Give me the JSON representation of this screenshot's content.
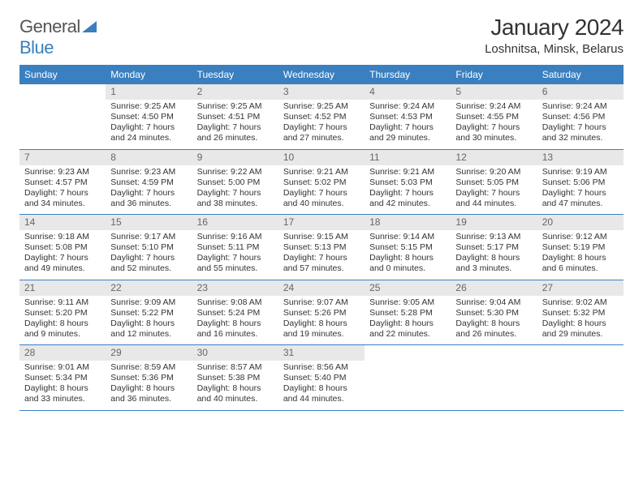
{
  "logo": {
    "gray": "General",
    "blue": "Blue"
  },
  "title": "January 2024",
  "location": "Loshnitsa, Minsk, Belarus",
  "colors": {
    "header_bg": "#3a7fbf",
    "header_fg": "#ffffff",
    "daynum_bg": "#e8e8e8",
    "daynum_fg": "#666666",
    "row_divider": "#3a7fbf",
    "text": "#333333",
    "page_bg": "#ffffff"
  },
  "weekdays": [
    "Sunday",
    "Monday",
    "Tuesday",
    "Wednesday",
    "Thursday",
    "Friday",
    "Saturday"
  ],
  "weeks": [
    [
      {
        "day": "",
        "sunrise": "",
        "sunset": "",
        "daylight": ""
      },
      {
        "day": "1",
        "sunrise": "Sunrise: 9:25 AM",
        "sunset": "Sunset: 4:50 PM",
        "daylight": "Daylight: 7 hours and 24 minutes."
      },
      {
        "day": "2",
        "sunrise": "Sunrise: 9:25 AM",
        "sunset": "Sunset: 4:51 PM",
        "daylight": "Daylight: 7 hours and 26 minutes."
      },
      {
        "day": "3",
        "sunrise": "Sunrise: 9:25 AM",
        "sunset": "Sunset: 4:52 PM",
        "daylight": "Daylight: 7 hours and 27 minutes."
      },
      {
        "day": "4",
        "sunrise": "Sunrise: 9:24 AM",
        "sunset": "Sunset: 4:53 PM",
        "daylight": "Daylight: 7 hours and 29 minutes."
      },
      {
        "day": "5",
        "sunrise": "Sunrise: 9:24 AM",
        "sunset": "Sunset: 4:55 PM",
        "daylight": "Daylight: 7 hours and 30 minutes."
      },
      {
        "day": "6",
        "sunrise": "Sunrise: 9:24 AM",
        "sunset": "Sunset: 4:56 PM",
        "daylight": "Daylight: 7 hours and 32 minutes."
      }
    ],
    [
      {
        "day": "7",
        "sunrise": "Sunrise: 9:23 AM",
        "sunset": "Sunset: 4:57 PM",
        "daylight": "Daylight: 7 hours and 34 minutes."
      },
      {
        "day": "8",
        "sunrise": "Sunrise: 9:23 AM",
        "sunset": "Sunset: 4:59 PM",
        "daylight": "Daylight: 7 hours and 36 minutes."
      },
      {
        "day": "9",
        "sunrise": "Sunrise: 9:22 AM",
        "sunset": "Sunset: 5:00 PM",
        "daylight": "Daylight: 7 hours and 38 minutes."
      },
      {
        "day": "10",
        "sunrise": "Sunrise: 9:21 AM",
        "sunset": "Sunset: 5:02 PM",
        "daylight": "Daylight: 7 hours and 40 minutes."
      },
      {
        "day": "11",
        "sunrise": "Sunrise: 9:21 AM",
        "sunset": "Sunset: 5:03 PM",
        "daylight": "Daylight: 7 hours and 42 minutes."
      },
      {
        "day": "12",
        "sunrise": "Sunrise: 9:20 AM",
        "sunset": "Sunset: 5:05 PM",
        "daylight": "Daylight: 7 hours and 44 minutes."
      },
      {
        "day": "13",
        "sunrise": "Sunrise: 9:19 AM",
        "sunset": "Sunset: 5:06 PM",
        "daylight": "Daylight: 7 hours and 47 minutes."
      }
    ],
    [
      {
        "day": "14",
        "sunrise": "Sunrise: 9:18 AM",
        "sunset": "Sunset: 5:08 PM",
        "daylight": "Daylight: 7 hours and 49 minutes."
      },
      {
        "day": "15",
        "sunrise": "Sunrise: 9:17 AM",
        "sunset": "Sunset: 5:10 PM",
        "daylight": "Daylight: 7 hours and 52 minutes."
      },
      {
        "day": "16",
        "sunrise": "Sunrise: 9:16 AM",
        "sunset": "Sunset: 5:11 PM",
        "daylight": "Daylight: 7 hours and 55 minutes."
      },
      {
        "day": "17",
        "sunrise": "Sunrise: 9:15 AM",
        "sunset": "Sunset: 5:13 PM",
        "daylight": "Daylight: 7 hours and 57 minutes."
      },
      {
        "day": "18",
        "sunrise": "Sunrise: 9:14 AM",
        "sunset": "Sunset: 5:15 PM",
        "daylight": "Daylight: 8 hours and 0 minutes."
      },
      {
        "day": "19",
        "sunrise": "Sunrise: 9:13 AM",
        "sunset": "Sunset: 5:17 PM",
        "daylight": "Daylight: 8 hours and 3 minutes."
      },
      {
        "day": "20",
        "sunrise": "Sunrise: 9:12 AM",
        "sunset": "Sunset: 5:19 PM",
        "daylight": "Daylight: 8 hours and 6 minutes."
      }
    ],
    [
      {
        "day": "21",
        "sunrise": "Sunrise: 9:11 AM",
        "sunset": "Sunset: 5:20 PM",
        "daylight": "Daylight: 8 hours and 9 minutes."
      },
      {
        "day": "22",
        "sunrise": "Sunrise: 9:09 AM",
        "sunset": "Sunset: 5:22 PM",
        "daylight": "Daylight: 8 hours and 12 minutes."
      },
      {
        "day": "23",
        "sunrise": "Sunrise: 9:08 AM",
        "sunset": "Sunset: 5:24 PM",
        "daylight": "Daylight: 8 hours and 16 minutes."
      },
      {
        "day": "24",
        "sunrise": "Sunrise: 9:07 AM",
        "sunset": "Sunset: 5:26 PM",
        "daylight": "Daylight: 8 hours and 19 minutes."
      },
      {
        "day": "25",
        "sunrise": "Sunrise: 9:05 AM",
        "sunset": "Sunset: 5:28 PM",
        "daylight": "Daylight: 8 hours and 22 minutes."
      },
      {
        "day": "26",
        "sunrise": "Sunrise: 9:04 AM",
        "sunset": "Sunset: 5:30 PM",
        "daylight": "Daylight: 8 hours and 26 minutes."
      },
      {
        "day": "27",
        "sunrise": "Sunrise: 9:02 AM",
        "sunset": "Sunset: 5:32 PM",
        "daylight": "Daylight: 8 hours and 29 minutes."
      }
    ],
    [
      {
        "day": "28",
        "sunrise": "Sunrise: 9:01 AM",
        "sunset": "Sunset: 5:34 PM",
        "daylight": "Daylight: 8 hours and 33 minutes."
      },
      {
        "day": "29",
        "sunrise": "Sunrise: 8:59 AM",
        "sunset": "Sunset: 5:36 PM",
        "daylight": "Daylight: 8 hours and 36 minutes."
      },
      {
        "day": "30",
        "sunrise": "Sunrise: 8:57 AM",
        "sunset": "Sunset: 5:38 PM",
        "daylight": "Daylight: 8 hours and 40 minutes."
      },
      {
        "day": "31",
        "sunrise": "Sunrise: 8:56 AM",
        "sunset": "Sunset: 5:40 PM",
        "daylight": "Daylight: 8 hours and 44 minutes."
      },
      {
        "day": "",
        "sunrise": "",
        "sunset": "",
        "daylight": ""
      },
      {
        "day": "",
        "sunrise": "",
        "sunset": "",
        "daylight": ""
      },
      {
        "day": "",
        "sunrise": "",
        "sunset": "",
        "daylight": ""
      }
    ]
  ]
}
